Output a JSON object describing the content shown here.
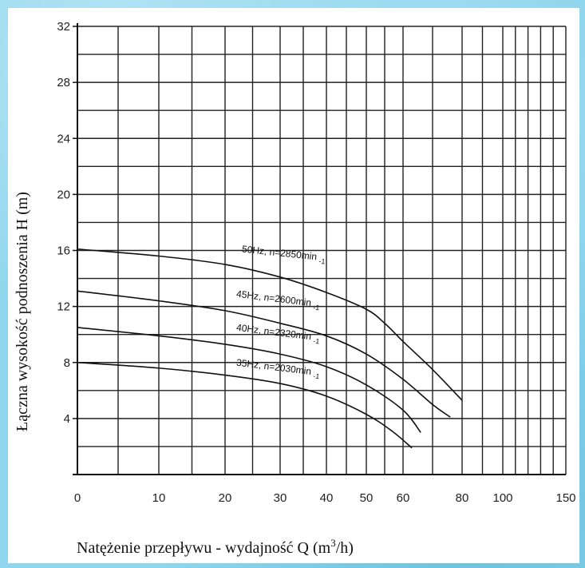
{
  "chart_data": {
    "type": "line",
    "ylabel": "Łączna wysokość podnoszenia H (m)",
    "xlabel": {
      "prefix": "Natężenie przepływu - wydajność  Q (m",
      "sup": "3",
      "suffix": "/h)"
    },
    "y_ticks": [
      4,
      8,
      12,
      16,
      20,
      24,
      28,
      32
    ],
    "y_tick_labels": [
      "4",
      "8",
      "12",
      "16",
      "20",
      "24",
      "28",
      "32"
    ],
    "ylim": [
      0,
      32
    ],
    "x_scale": "nonlinear (compressed toward 150)",
    "x_tick_values": [
      0,
      10,
      20,
      30,
      40,
      50,
      60,
      80,
      100,
      150
    ],
    "x_tick_labels": [
      "0",
      "10",
      "20",
      "30",
      "40",
      "50",
      "60",
      "80",
      "100",
      "150"
    ],
    "grid": true,
    "series": [
      {
        "name": "50Hz, n=2850min -1",
        "label_main": "50Hz,  n=2850min",
        "label_sup": "-1",
        "points": [
          [
            0,
            16.1
          ],
          [
            10,
            15.6
          ],
          [
            20,
            15.0
          ],
          [
            30,
            14.1
          ],
          [
            40,
            13.0
          ],
          [
            50,
            11.8
          ],
          [
            55,
            10.8
          ],
          [
            60,
            9.5
          ],
          [
            70,
            7.5
          ],
          [
            80,
            5.3
          ]
        ]
      },
      {
        "name": "45Hz, n=2600min -1",
        "label_main": "45Hz,  n=2600min",
        "label_sup": "-1",
        "points": [
          [
            0,
            13.1
          ],
          [
            10,
            12.4
          ],
          [
            20,
            11.7
          ],
          [
            30,
            10.8
          ],
          [
            40,
            9.9
          ],
          [
            50,
            8.6
          ],
          [
            60,
            6.8
          ],
          [
            70,
            5.0
          ],
          [
            76,
            4.1
          ]
        ]
      },
      {
        "name": "40Hz, n=2320min -1",
        "label_main": "40Hz,  n=2320min",
        "label_sup": "-1",
        "points": [
          [
            0,
            10.5
          ],
          [
            10,
            9.9
          ],
          [
            20,
            9.3
          ],
          [
            30,
            8.6
          ],
          [
            40,
            7.7
          ],
          [
            50,
            6.4
          ],
          [
            60,
            4.6
          ],
          [
            66,
            3.0
          ]
        ]
      },
      {
        "name": "35Hz, n=2030min -1",
        "label_main": "35Hz,  n=2030min",
        "label_sup": "-1",
        "points": [
          [
            0,
            8.0
          ],
          [
            10,
            7.6
          ],
          [
            20,
            7.1
          ],
          [
            30,
            6.5
          ],
          [
            40,
            5.6
          ],
          [
            50,
            4.3
          ],
          [
            57,
            3.1
          ],
          [
            63,
            1.9
          ]
        ]
      }
    ]
  }
}
